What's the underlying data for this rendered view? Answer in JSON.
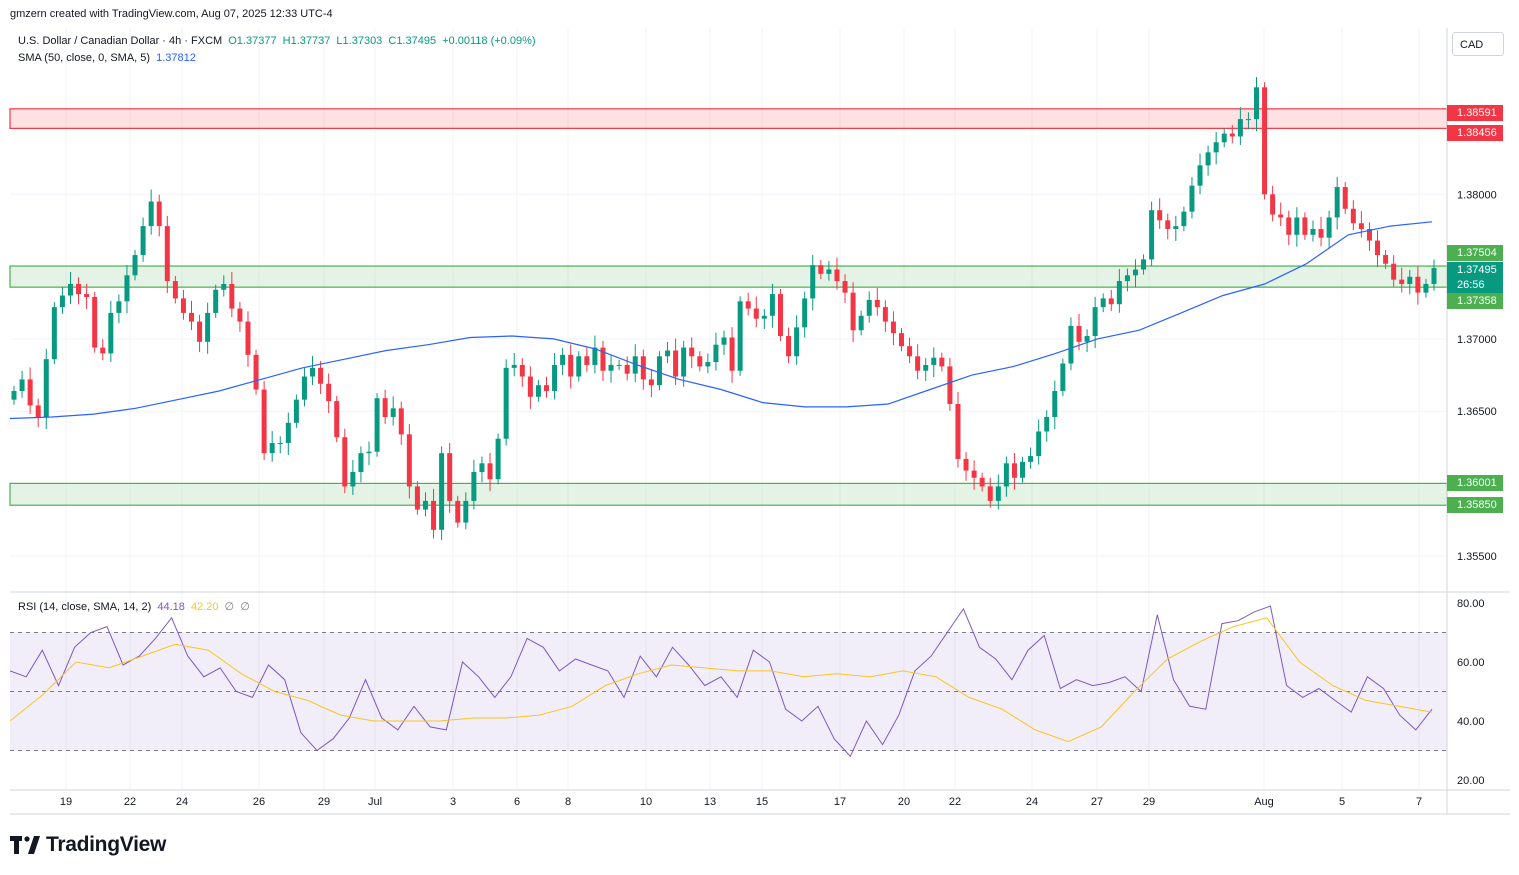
{
  "header": {
    "created_by": "gmzern created with TradingView.com, Aug 07, 2025 12:33 UTC-4"
  },
  "legend": {
    "symbol": "U.S. Dollar / Canadian Dollar · 4h · FXCM",
    "open": "O1.37377",
    "high": "H1.37737",
    "low": "L1.37303",
    "close": "C1.37495",
    "change": "+0.00118 (+0.09%)",
    "sma_label": "SMA (50, close, 0, SMA, 5)",
    "sma_value": "1.37812",
    "rsi_label": "RSI (14, close, SMA, 14, 2)",
    "rsi_value": "44.18",
    "rsi_sma_value": "42.20",
    "rsi_extra_1": "∅",
    "rsi_extra_2": "∅"
  },
  "currency": "CAD",
  "logo_text": "TradingView",
  "price_tags": {
    "res_top": "1.38591",
    "res_bottom": "1.38456",
    "mid_top": "1.37504",
    "last_price": "1.37495",
    "countdown": "26:56",
    "mid_bottom": "1.37358",
    "sup_top": "1.36001",
    "sup_bottom": "1.35850"
  },
  "colors": {
    "up": "#089981",
    "down": "#f23645",
    "sma": "#2962ff",
    "rsi": "#7e57c2",
    "rsi_sma": "#f7c520",
    "support_zone": "#4caf50",
    "resistance_zone": "#f23645"
  },
  "chart_data": [
    {
      "type": "candlestick",
      "title": "U.S. Dollar / Canadian Dollar · 4h · FXCM",
      "ylim": [
        1.3525,
        1.3915
      ],
      "y_ticks": [
        "1.38000",
        "1.37000",
        "1.36500",
        "1.35500"
      ],
      "x_ticks": [
        "19",
        "22",
        "24",
        "26",
        "29",
        "Jul",
        "3",
        "6",
        "8",
        "10",
        "13",
        "15",
        "17",
        "20",
        "22",
        "24",
        "27",
        "29",
        "Aug",
        "5",
        "7"
      ],
      "zones": [
        {
          "name": "resistance",
          "from": 1.38456,
          "to": 1.38591
        },
        {
          "name": "pivot",
          "from": 1.37358,
          "to": 1.37504
        },
        {
          "name": "support",
          "from": 1.3585,
          "to": 1.36001
        }
      ],
      "closes": [
        1.3664,
        1.3672,
        1.3654,
        1.3646,
        1.3686,
        1.3722,
        1.373,
        1.3738,
        1.3731,
        1.3729,
        1.3694,
        1.369,
        1.3718,
        1.3726,
        1.3744,
        1.3758,
        1.3778,
        1.3795,
        1.3778,
        1.374,
        1.3728,
        1.3718,
        1.3712,
        1.3698,
        1.3718,
        1.3734,
        1.3738,
        1.3721,
        1.3712,
        1.3689,
        1.3665,
        1.3621,
        1.3628,
        1.3628,
        1.3642,
        1.3658,
        1.3674,
        1.368,
        1.3669,
        1.3657,
        1.3632,
        1.3598,
        1.3608,
        1.3621,
        1.3622,
        1.3659,
        1.3646,
        1.3652,
        1.3634,
        1.3598,
        1.3582,
        1.3588,
        1.3568,
        1.3621,
        1.3588,
        1.3573,
        1.3588,
        1.3608,
        1.3614,
        1.3603,
        1.3631,
        1.368,
        1.3682,
        1.3674,
        1.366,
        1.3668,
        1.3664,
        1.3682,
        1.3689,
        1.3674,
        1.3688,
        1.3682,
        1.3694,
        1.3678,
        1.3682,
        1.3682,
        1.3676,
        1.3688,
        1.3672,
        1.3668,
        1.3688,
        1.3692,
        1.3674,
        1.3694,
        1.3688,
        1.3681,
        1.3684,
        1.3696,
        1.3701,
        1.3678,
        1.3726,
        1.3721,
        1.3714,
        1.3716,
        1.3731,
        1.3702,
        1.3688,
        1.3708,
        1.3728,
        1.3751,
        1.3745,
        1.3748,
        1.374,
        1.3732,
        1.3706,
        1.3716,
        1.3727,
        1.3722,
        1.3712,
        1.3704,
        1.3695,
        1.3688,
        1.3678,
        1.3682,
        1.3687,
        1.3681,
        1.3655,
        1.3617,
        1.3609,
        1.3604,
        1.3598,
        1.3588,
        1.3598,
        1.3614,
        1.3604,
        1.3615,
        1.3619,
        1.3636,
        1.3646,
        1.3664,
        1.3683,
        1.3709,
        1.3698,
        1.3702,
        1.3722,
        1.3728,
        1.3724,
        1.374,
        1.3744,
        1.3748,
        1.3755,
        1.3789,
        1.3782,
        1.3776,
        1.3778,
        1.3788,
        1.3806,
        1.382,
        1.3829,
        1.3836,
        1.3842,
        1.384,
        1.3852,
        1.3852,
        1.3874,
        1.38,
        1.3786,
        1.3784,
        1.3772,
        1.3784,
        1.3772,
        1.3776,
        1.377,
        1.3784,
        1.3805,
        1.379,
        1.378,
        1.3776,
        1.3768,
        1.3758,
        1.3752,
        1.3741,
        1.3738,
        1.3743,
        1.3732,
        1.3738,
        1.3749
      ],
      "sma_50": [
        1.3645,
        1.3646,
        1.3648,
        1.3652,
        1.3658,
        1.3664,
        1.3672,
        1.368,
        1.3686,
        1.3692,
        1.3696,
        1.3701,
        1.3702,
        1.37,
        1.3693,
        1.3682,
        1.3672,
        1.3665,
        1.3656,
        1.3653,
        1.3653,
        1.3655,
        1.3665,
        1.3675,
        1.3681,
        1.369,
        1.37,
        1.3706,
        1.3718,
        1.373,
        1.3738,
        1.3752,
        1.3772,
        1.3778,
        1.3781
      ],
      "rsi": [
        57,
        55,
        64,
        52,
        65,
        70,
        72,
        59,
        62,
        68,
        75,
        62,
        55,
        58,
        50,
        48,
        59,
        54,
        36,
        30,
        34,
        41,
        54,
        41,
        37,
        45,
        38,
        37,
        60,
        55,
        48,
        55,
        68,
        65,
        57,
        61,
        59,
        57,
        48,
        62,
        55,
        65,
        59,
        52,
        55,
        48,
        64,
        60,
        44,
        40,
        45,
        34,
        28,
        40,
        32,
        42,
        57,
        62,
        70,
        78,
        65,
        61,
        54,
        64,
        69,
        51,
        54,
        52,
        53,
        55,
        50,
        76,
        54,
        45,
        44,
        73,
        74,
        77,
        79,
        52,
        48,
        51,
        47,
        43,
        55,
        51,
        42,
        37,
        44
      ],
      "rsi_sma": [
        40,
        49,
        60,
        58,
        62,
        66,
        64,
        56,
        50,
        47,
        42,
        40,
        40,
        40,
        41,
        41,
        42,
        45,
        52,
        56,
        59,
        58,
        57,
        57,
        55,
        56,
        55,
        57,
        55,
        48,
        44,
        37,
        33,
        38,
        50,
        61,
        67,
        72,
        75,
        60,
        52,
        47,
        45,
        43
      ],
      "rsi_ylim": [
        20,
        80
      ],
      "rsi_ticks": [
        "80.00",
        "60.00",
        "40.00",
        "20.00"
      ]
    }
  ]
}
